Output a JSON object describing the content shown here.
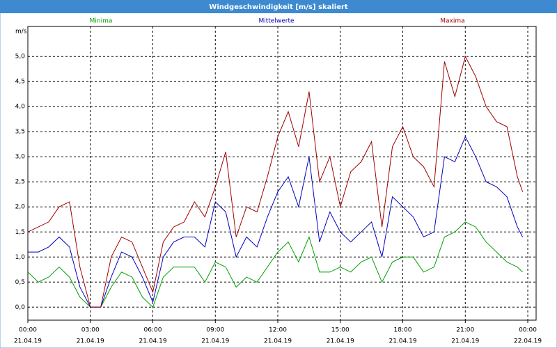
{
  "chart_data": {
    "type": "line",
    "title": "Windgeschwindigkeit [m/s] skaliert",
    "ylabel": "m/s",
    "x": [
      0,
      0.5,
      1,
      1.5,
      2,
      2.5,
      3,
      3.5,
      4,
      4.5,
      5,
      5.5,
      6,
      6.5,
      7,
      7.5,
      8,
      8.5,
      9,
      9.5,
      10,
      10.5,
      11,
      11.5,
      12,
      12.5,
      13,
      13.5,
      14,
      14.5,
      15,
      15.5,
      16,
      16.5,
      17,
      17.5,
      18,
      18.5,
      19,
      19.5,
      20,
      20.5,
      21,
      21.5,
      22,
      22.5,
      23,
      23.5,
      23.75
    ],
    "series": [
      {
        "name": "Minima",
        "color": "#00a000",
        "values": [
          0.7,
          0.5,
          0.6,
          0.8,
          0.6,
          0.2,
          0.0,
          0.0,
          0.4,
          0.7,
          0.6,
          0.2,
          0.0,
          0.6,
          0.8,
          0.8,
          0.8,
          0.5,
          0.9,
          0.8,
          0.4,
          0.6,
          0.5,
          0.8,
          1.1,
          1.3,
          0.9,
          1.4,
          0.7,
          0.7,
          0.8,
          0.7,
          0.9,
          1.0,
          0.5,
          0.9,
          1.0,
          1.0,
          0.7,
          0.8,
          1.4,
          1.5,
          1.7,
          1.6,
          1.3,
          1.1,
          0.9,
          0.8,
          0.7
        ]
      },
      {
        "name": "Mittelwerte",
        "color": "#0000c0",
        "values": [
          1.1,
          1.1,
          1.2,
          1.4,
          1.2,
          0.4,
          0.0,
          0.0,
          0.6,
          1.1,
          1.0,
          0.6,
          0.1,
          1.0,
          1.3,
          1.4,
          1.4,
          1.2,
          2.1,
          1.9,
          1.0,
          1.4,
          1.2,
          1.8,
          2.3,
          2.6,
          2.0,
          3.0,
          1.3,
          1.9,
          1.5,
          1.3,
          1.5,
          1.7,
          1.0,
          2.2,
          2.0,
          1.8,
          1.4,
          1.5,
          3.0,
          2.9,
          3.4,
          3.0,
          2.5,
          2.4,
          2.2,
          1.6,
          1.4
        ]
      },
      {
        "name": "Maxima",
        "color": "#a00000",
        "values": [
          1.5,
          1.6,
          1.7,
          2.0,
          2.1,
          0.8,
          0.0,
          0.0,
          1.0,
          1.4,
          1.3,
          0.8,
          0.3,
          1.3,
          1.6,
          1.7,
          2.1,
          1.8,
          2.4,
          3.1,
          1.4,
          2.0,
          1.9,
          2.6,
          3.4,
          3.9,
          3.2,
          4.3,
          2.5,
          3.0,
          2.0,
          2.7,
          2.9,
          3.3,
          1.6,
          3.2,
          3.6,
          3.0,
          2.8,
          2.4,
          4.9,
          4.2,
          5.0,
          4.6,
          4.0,
          3.7,
          3.6,
          2.6,
          2.3
        ]
      }
    ],
    "xlim": [
      0,
      24.4
    ],
    "xticks": [
      {
        "value": 0,
        "label": "00:00",
        "date": "21.04.19"
      },
      {
        "value": 3,
        "label": "03:00",
        "date": "21.04.19"
      },
      {
        "value": 6,
        "label": "06:00",
        "date": "21.04.19"
      },
      {
        "value": 9,
        "label": "09:00",
        "date": "21.04.19"
      },
      {
        "value": 12,
        "label": "12:00",
        "date": "21.04.19"
      },
      {
        "value": 15,
        "label": "15:00",
        "date": "21.04.19"
      },
      {
        "value": 18,
        "label": "18:00",
        "date": "21.04.19"
      },
      {
        "value": 21,
        "label": "21:00",
        "date": "21.04.19"
      },
      {
        "value": 24,
        "label": "00:00",
        "date": "22.04.19"
      }
    ],
    "ylim": [
      -0.26,
      5.6
    ],
    "yticks": [
      {
        "value": 0,
        "label": "0,0"
      },
      {
        "value": 0.5,
        "label": "0,5"
      },
      {
        "value": 1,
        "label": "1,0"
      },
      {
        "value": 1.5,
        "label": "1,5"
      },
      {
        "value": 2,
        "label": "2,0"
      },
      {
        "value": 2.5,
        "label": "2,5"
      },
      {
        "value": 3,
        "label": "3,0"
      },
      {
        "value": 3.5,
        "label": "3,5"
      },
      {
        "value": 4,
        "label": "4,0"
      },
      {
        "value": 4.5,
        "label": "4,5"
      },
      {
        "value": 5,
        "label": "5,0"
      }
    ],
    "grid": true
  }
}
